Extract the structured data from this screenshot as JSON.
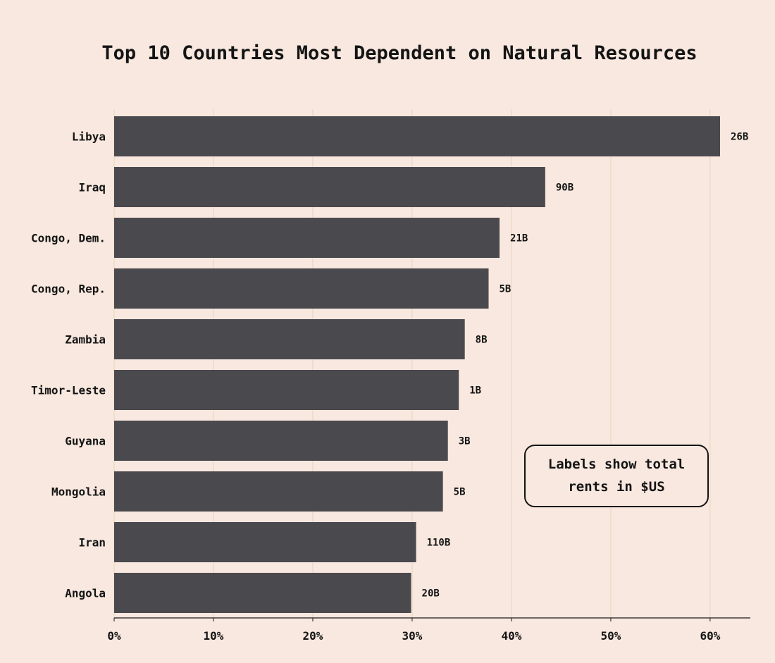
{
  "chart_data": {
    "type": "bar",
    "orientation": "horizontal",
    "title": "Top 10 Countries Most Dependent on Natural Resources",
    "categories": [
      "Libya",
      "Iraq",
      "Congo, Dem.",
      "Congo, Rep.",
      "Zambia",
      "Timor-Leste",
      "Guyana",
      "Mongolia",
      "Iran",
      "Angola"
    ],
    "values": [
      61.0,
      43.4,
      38.8,
      37.7,
      35.3,
      34.7,
      33.6,
      33.1,
      30.4,
      29.9
    ],
    "value_labels": [
      "26B",
      "90B",
      "21B",
      "5B",
      "8B",
      "1B",
      "3B",
      "5B",
      "110B",
      "20B"
    ],
    "xlabel": "",
    "ylabel": "",
    "xlim": [
      0,
      64
    ],
    "xticks": [
      0,
      10,
      20,
      30,
      40,
      50,
      60
    ],
    "xtick_labels": [
      "0%",
      "10%",
      "20%",
      "30%",
      "40%",
      "50%",
      "60%"
    ],
    "grid": true,
    "annotation": {
      "lines": [
        "Labels show total",
        "rents in $US"
      ],
      "placement": "bottom-right"
    },
    "colors": {
      "background": "#f8e8df",
      "bar": "#4a494e",
      "grid": "#ead3be",
      "text": "#141414"
    }
  }
}
